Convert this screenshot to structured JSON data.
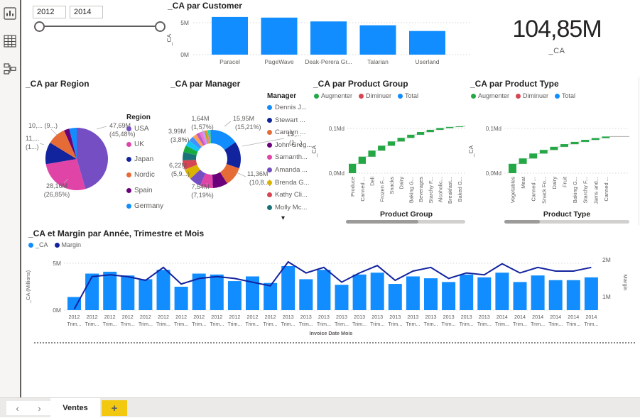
{
  "window": {
    "page_tab": "Ventes",
    "add_page_label": "+",
    "prev_page": "‹",
    "next_page": "›"
  },
  "sidebar": {
    "icons": [
      "report-view",
      "data-view",
      "model-view"
    ]
  },
  "slicer": {
    "start": "2012",
    "end": "2014"
  },
  "card": {
    "value": "104,85M",
    "label": "_CA"
  },
  "colors": {
    "bar_blue": "#118DFF",
    "navy": "#12239E",
    "increase_green": "#23A845",
    "decrease_red": "#D64554",
    "accent_yellow": "#F2C811"
  },
  "chart_data": [
    {
      "id": "customer_bar",
      "type": "bar",
      "title": "_CA par Customer",
      "categories": [
        "Paracel",
        "PageWave",
        "Deak-Perera Gr...",
        "Talarian",
        "Userland"
      ],
      "values_M": [
        5.9,
        5.8,
        5.2,
        4.6,
        3.7
      ],
      "ylabel": "_CA",
      "yticks": [
        "5M",
        "0M"
      ],
      "ylim_M": [
        0,
        6.3
      ],
      "bar_color": "#118DFF",
      "grid": true
    },
    {
      "id": "region_pie",
      "type": "pie",
      "title": "_CA par Region",
      "legend_title": "Region",
      "legend_position": "right",
      "slices": [
        {
          "label": "USA",
          "value_pct": 45.48,
          "value_label": "47,69M (45,48%)",
          "color": "#744EC2"
        },
        {
          "label": "UK",
          "value_pct": 26.85,
          "value_label": "28,16M (26,85%)",
          "color": "#E044A7"
        },
        {
          "label": "Japan",
          "value_pct": 11.4,
          "value_label": "11,... (1...)",
          "color": "#12239E"
        },
        {
          "label": "Nordic",
          "value_pct": 9.6,
          "value_label": "10,... (9...)",
          "color": "#E66C37"
        },
        {
          "label": "Spain",
          "value_pct": 2.8,
          "value_label": "",
          "color": "#6B007B"
        },
        {
          "label": "Germany",
          "value_pct": 3.87,
          "value_label": "",
          "color": "#118DFF"
        }
      ]
    },
    {
      "id": "manager_donut",
      "type": "donut",
      "title": "_CA par Manager",
      "legend_title": "Manager",
      "legend_position": "right",
      "legend_items": [
        {
          "label": "Dennis J...",
          "color": "#118DFF"
        },
        {
          "label": "Stewart ...",
          "color": "#12239E"
        },
        {
          "label": "Carolyn ...",
          "color": "#E66C37"
        },
        {
          "label": "John Greg...",
          "color": "#6B007B"
        },
        {
          "label": "Samanth...",
          "color": "#E044A7"
        },
        {
          "label": "Amanda ...",
          "color": "#744EC2"
        },
        {
          "label": "Brenda G...",
          "color": "#D9B300"
        },
        {
          "label": "Kathy Cli...",
          "color": "#D64554"
        },
        {
          "label": "Molly Mc...",
          "color": "#197278"
        }
      ],
      "more_legend_indicator": "▾",
      "values_pct": [
        15.21,
        15.0,
        10.8,
        8.3,
        7.19,
        6.6,
        5.9,
        5.2,
        4.6,
        3.8,
        3.4,
        2.8,
        2.3,
        1.9,
        1.57,
        1.3,
        1.1,
        0.9,
        0.8,
        0.6,
        0.7
      ],
      "point_labels": [
        "15,95M (15,21%)",
        "15,... (1...)",
        "11,36M (10,8...)",
        "7,54M (7,19%)",
        "6,22M (5,9...)",
        "3,99M (3,8%)",
        "1,64M (1,57%)"
      ]
    },
    {
      "id": "product_group_waterfall",
      "type": "waterfall",
      "title": "_CA par Product Group",
      "legend": [
        {
          "label": "Augmenter",
          "color": "#23A845"
        },
        {
          "label": "Diminuer",
          "color": "#D64554"
        },
        {
          "label": "Total",
          "color": "#118DFF"
        }
      ],
      "categories": [
        "Produce",
        "Canned ...",
        "Deli",
        "Frozen F...",
        "Snacks",
        "Dairy",
        "Baking G...",
        "Beverages",
        "Starchy F...",
        "Alcoholic...",
        "Breakfast...",
        "Baked G..."
      ],
      "increments_Md": [
        0.021,
        0.016,
        0.0135,
        0.011,
        0.0095,
        0.008,
        0.007,
        0.006,
        0.005,
        0.004,
        0.0025,
        0.0015
      ],
      "ylabel": "_CA",
      "yticks": [
        "0,1Md",
        "0,0Md"
      ],
      "xlabel": "Product Group",
      "grid": true
    },
    {
      "id": "product_type_waterfall",
      "type": "waterfall",
      "title": "_CA par Product Type",
      "legend": [
        {
          "label": "Augmenter",
          "color": "#23A845"
        },
        {
          "label": "Diminuer",
          "color": "#D64554"
        },
        {
          "label": "Total",
          "color": "#118DFF"
        }
      ],
      "categories": [
        "Vegetables",
        "Meat",
        "Canned ...",
        "Snack Fo...",
        "Dairy",
        "Fruit",
        "Baking G...",
        "Starchy F...",
        "Jams and...",
        "Canned ..."
      ],
      "increments_Md": [
        0.021,
        0.012,
        0.011,
        0.008,
        0.007,
        0.006,
        0.005,
        0.0045,
        0.004,
        0.0035
      ],
      "ylabel": "_CA",
      "yticks": [
        "0,1Md",
        "0,0Md"
      ],
      "xlabel": "Product Type",
      "grid": true
    },
    {
      "id": "ca_margin_combo",
      "type": "combo-bar-line",
      "title": "_CA et Margin par Année, Trimestre et Mois",
      "legend": [
        {
          "label": "_CA",
          "color": "#118DFF"
        },
        {
          "label": "Margin",
          "color": "#12239E"
        }
      ],
      "x_years": [
        "2012",
        "2012",
        "2012",
        "2012",
        "2012",
        "2012",
        "2012",
        "2012",
        "2012",
        "2012",
        "2012",
        "2012",
        "2013",
        "2013",
        "2013",
        "2013",
        "2013",
        "2013",
        "2013",
        "2013",
        "2013",
        "2013",
        "2013",
        "2013",
        "2014",
        "2014",
        "2014",
        "2014",
        "2014",
        "2014"
      ],
      "x_sub": "Trim...",
      "xlabel": "Invoice Date Mois",
      "bar_values_M": [
        1.4,
        3.9,
        4.1,
        3.7,
        3.3,
        4.3,
        2.5,
        3.9,
        3.8,
        3.1,
        3.6,
        2.9,
        4.7,
        3.3,
        4.3,
        2.7,
        3.8,
        4.0,
        2.8,
        3.6,
        3.4,
        3.0,
        3.8,
        3.5,
        4.0,
        3.0,
        3.7,
        3.2,
        3.2,
        3.5
      ],
      "line_values_M": [
        0.72,
        1.6,
        1.65,
        1.6,
        1.5,
        1.85,
        1.4,
        1.55,
        1.6,
        1.55,
        1.45,
        1.35,
        2.0,
        1.7,
        1.85,
        1.45,
        1.7,
        1.9,
        1.5,
        1.75,
        1.85,
        1.55,
        1.7,
        1.65,
        1.95,
        1.7,
        1.85,
        1.75,
        1.75,
        1.85
      ],
      "left_axis": {
        "label": "_CA (Millions)",
        "ticks": [
          "5M",
          "0M"
        ],
        "max_M": 5
      },
      "right_axis": {
        "label": "Margin",
        "ticks": [
          "2M",
          "1M"
        ]
      }
    }
  ]
}
